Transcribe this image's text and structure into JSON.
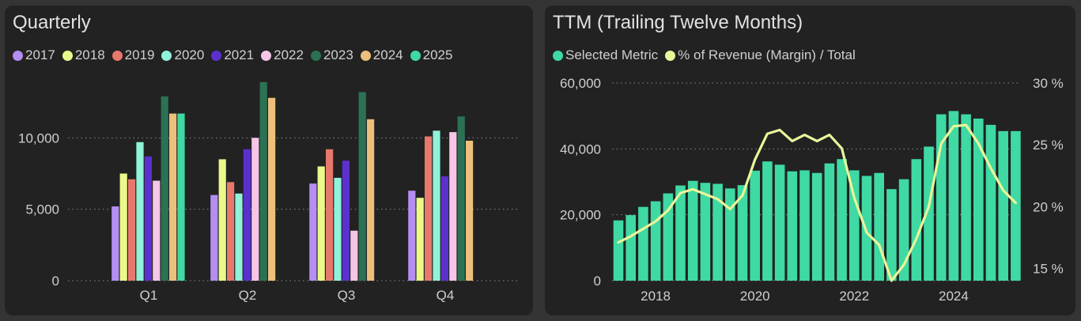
{
  "panels": {
    "quarterly": {
      "title": "Quarterly"
    },
    "ttm": {
      "title": "TTM (Trailing Twelve Months)"
    }
  },
  "colors": {
    "background": "#343434",
    "panel": "#222222",
    "text": "#cfcfcf",
    "grid": "#8a8a8a",
    "selected_metric": "#3fd9a3",
    "margin_line": "#eaf59a"
  },
  "chart_data": [
    {
      "type": "bar",
      "title": "Quarterly",
      "categories": [
        "Q1",
        "Q2",
        "Q3",
        "Q4"
      ],
      "yticks": [
        0,
        5000,
        10000
      ],
      "ytick_labels": [
        "0",
        "5,000",
        "10,000"
      ],
      "ylim": [
        0,
        15000
      ],
      "grid": true,
      "legend_position": "top-left",
      "series": [
        {
          "name": "2017",
          "color": "#b48ef0",
          "values": [
            5200,
            6000,
            6800,
            6300
          ]
        },
        {
          "name": "2018",
          "color": "#eaf98a",
          "values": [
            7500,
            8500,
            8000,
            5800
          ]
        },
        {
          "name": "2019",
          "color": "#e8786c",
          "values": [
            7100,
            6900,
            9200,
            10100
          ]
        },
        {
          "name": "2020",
          "color": "#8ff2d9",
          "values": [
            9700,
            6100,
            7200,
            10500
          ]
        },
        {
          "name": "2021",
          "color": "#5b30cf",
          "values": [
            8700,
            9200,
            8400,
            7300
          ]
        },
        {
          "name": "2022",
          "color": "#f5c6e6",
          "values": [
            7000,
            10000,
            3500,
            10400
          ]
        },
        {
          "name": "2023",
          "color": "#2b7254",
          "values": [
            12900,
            13900,
            13200,
            11500
          ]
        },
        {
          "name": "2024",
          "color": "#ecc07a",
          "values": [
            11700,
            12800,
            11300,
            9800
          ]
        },
        {
          "name": "2025",
          "color": "#3fd9a3",
          "values": [
            11700,
            null,
            null,
            null
          ]
        }
      ]
    },
    {
      "type": "bar",
      "title": "TTM (Trailing Twelve Months)",
      "x_ticks": [
        "2018",
        "2020",
        "2022",
        "2024"
      ],
      "yticks": [
        0,
        20000,
        40000,
        60000
      ],
      "ytick_labels": [
        "0",
        "20,000",
        "40,000",
        "60,000"
      ],
      "ylim": [
        0,
        60000
      ],
      "y2ticks": [
        15,
        20,
        25,
        30
      ],
      "y2tick_labels": [
        "15 %",
        "20 %",
        "25 %",
        "30 %"
      ],
      "y2lim": [
        14,
        30
      ],
      "grid": true,
      "legend_position": "top-left",
      "series": [
        {
          "name": "Selected Metric",
          "type": "bar",
          "color": "#3fd9a3",
          "x": [
            "2017-Q2",
            "2017-Q3",
            "2017-Q4",
            "2018-Q1",
            "2018-Q2",
            "2018-Q3",
            "2018-Q4",
            "2019-Q1",
            "2019-Q2",
            "2019-Q3",
            "2019-Q4",
            "2020-Q1",
            "2020-Q2",
            "2020-Q3",
            "2020-Q4",
            "2021-Q1",
            "2021-Q2",
            "2021-Q3",
            "2021-Q4",
            "2022-Q1",
            "2022-Q2",
            "2022-Q3",
            "2022-Q4",
            "2023-Q1",
            "2023-Q2",
            "2023-Q3",
            "2023-Q4",
            "2024-Q1",
            "2024-Q2",
            "2024-Q3",
            "2024-Q4",
            "2025-Q1",
            "2025-Q2"
          ],
          "values": [
            18300,
            19900,
            22400,
            24100,
            26500,
            28900,
            30300,
            29700,
            29400,
            28000,
            29000,
            33400,
            36200,
            35200,
            33200,
            33500,
            32700,
            35600,
            36900,
            33500,
            31800,
            32700,
            27800,
            30800,
            36900,
            40700,
            50500,
            51500,
            50500,
            49200,
            47300,
            45400,
            45400
          ]
        },
        {
          "name": "% of Revenue (Margin) / Total",
          "type": "line",
          "axis": "right",
          "color": "#eaf59a",
          "x": [
            "2017-Q2",
            "2017-Q3",
            "2017-Q4",
            "2018-Q1",
            "2018-Q2",
            "2018-Q3",
            "2018-Q4",
            "2019-Q1",
            "2019-Q2",
            "2019-Q3",
            "2019-Q4",
            "2020-Q1",
            "2020-Q2",
            "2020-Q3",
            "2020-Q4",
            "2021-Q1",
            "2021-Q2",
            "2021-Q3",
            "2021-Q4",
            "2022-Q1",
            "2022-Q2",
            "2022-Q3",
            "2022-Q4",
            "2023-Q1",
            "2023-Q2",
            "2023-Q3",
            "2023-Q4",
            "2024-Q1",
            "2024-Q2",
            "2024-Q3",
            "2024-Q4",
            "2025-Q1",
            "2025-Q2"
          ],
          "values": [
            17.1,
            17.6,
            18.2,
            18.8,
            19.7,
            21.1,
            21.4,
            21.0,
            20.6,
            19.8,
            20.9,
            23.8,
            25.9,
            26.2,
            25.3,
            25.8,
            25.3,
            25.8,
            24.7,
            20.7,
            17.9,
            16.9,
            14.0,
            15.3,
            17.4,
            20.0,
            25.1,
            26.5,
            26.6,
            25.1,
            23.1,
            21.3,
            20.3
          ]
        }
      ]
    }
  ]
}
